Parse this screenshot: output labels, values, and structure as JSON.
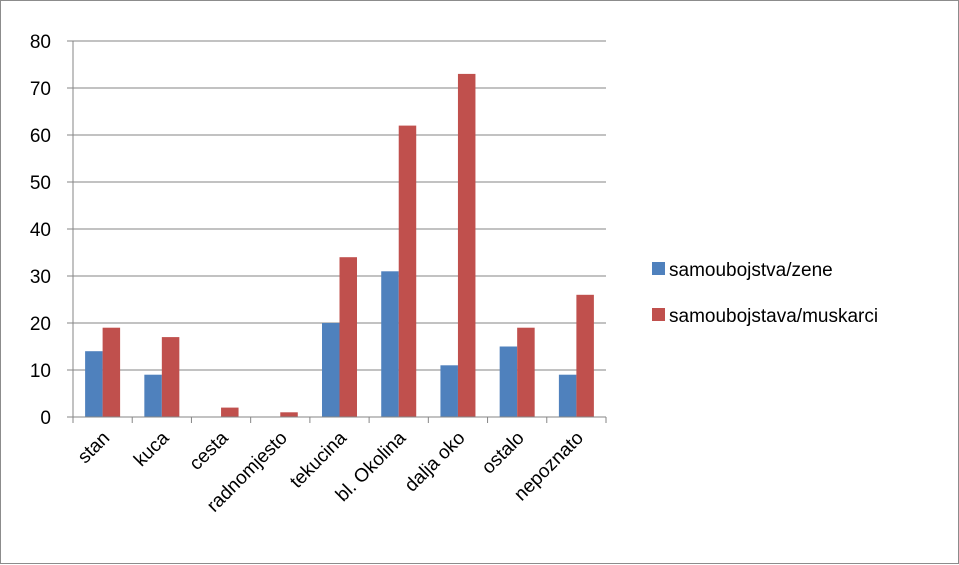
{
  "chart_data": {
    "type": "bar",
    "title": "",
    "xlabel": "",
    "ylabel": "",
    "categories": [
      "stan",
      "kuca",
      "cesta",
      "radnomjesto",
      "tekucina",
      "bl. Okolina",
      "dalja oko",
      "ostalo",
      "nepoznato"
    ],
    "series": [
      {
        "name": "samoubojstva/zene",
        "color": "#4f81bd",
        "values": [
          14,
          9,
          0,
          0,
          20,
          31,
          11,
          15,
          9
        ]
      },
      {
        "name": "samoubojstava/muskarci",
        "color": "#c0504d",
        "values": [
          19,
          17,
          2,
          1,
          34,
          62,
          73,
          19,
          26
        ]
      }
    ],
    "ylim": [
      0,
      80
    ],
    "yticks": [
      0,
      10,
      20,
      30,
      40,
      50,
      60,
      70,
      80
    ],
    "grid": true,
    "legend_position": "right"
  }
}
